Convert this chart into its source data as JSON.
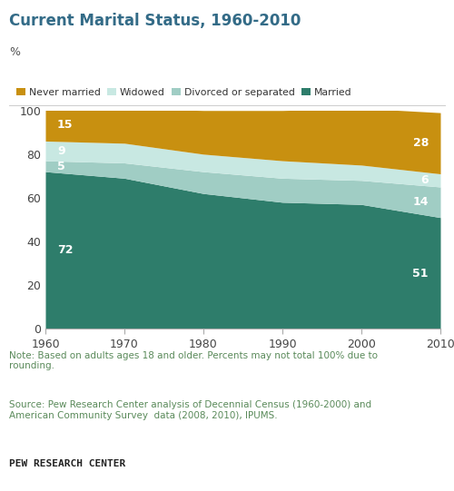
{
  "title": "Current Marital Status, 1960-2010",
  "ylabel": "%",
  "years": [
    1960,
    1970,
    1980,
    1990,
    2000,
    2010
  ],
  "series": {
    "Married": [
      72,
      69,
      62,
      58,
      57,
      51
    ],
    "Divorced or separated": [
      5,
      7,
      10,
      11,
      11,
      14
    ],
    "Widowed": [
      9,
      9,
      8,
      8,
      7,
      6
    ],
    "Never married": [
      15,
      16,
      20,
      23,
      26,
      28
    ]
  },
  "colors": {
    "Married": "#2e7d6b",
    "Divorced or separated": "#a0cdc4",
    "Widowed": "#c8e8e2",
    "Never married": "#c89010"
  },
  "legend_order": [
    "Never married",
    "Widowed",
    "Divorced or separated",
    "Married"
  ],
  "stack_order": [
    "Married",
    "Divorced or separated",
    "Widowed",
    "Never married"
  ],
  "annotations_left": {
    "Divorced or separated": "5",
    "Widowed": "9"
  },
  "annotations_right": {
    "Widowed": "6"
  },
  "note_text": "Note: Based on adults ages 18 and older. Percents may not total 100% due to\nrounding.",
  "source_text": "Source: Pew Research Center analysis of Decennial Census (1960-2000) and\nAmerican Community Survey  data (2008, 2010), IPUMS.",
  "brand_text": "PEW RESEARCH CENTER",
  "title_color": "#336b87",
  "note_color": "#5a8a5a",
  "source_color": "#5a8a5a",
  "brand_color": "#222222",
  "background_color": "#ffffff",
  "ylim": [
    0,
    100
  ],
  "xlim": [
    1960,
    2010
  ]
}
